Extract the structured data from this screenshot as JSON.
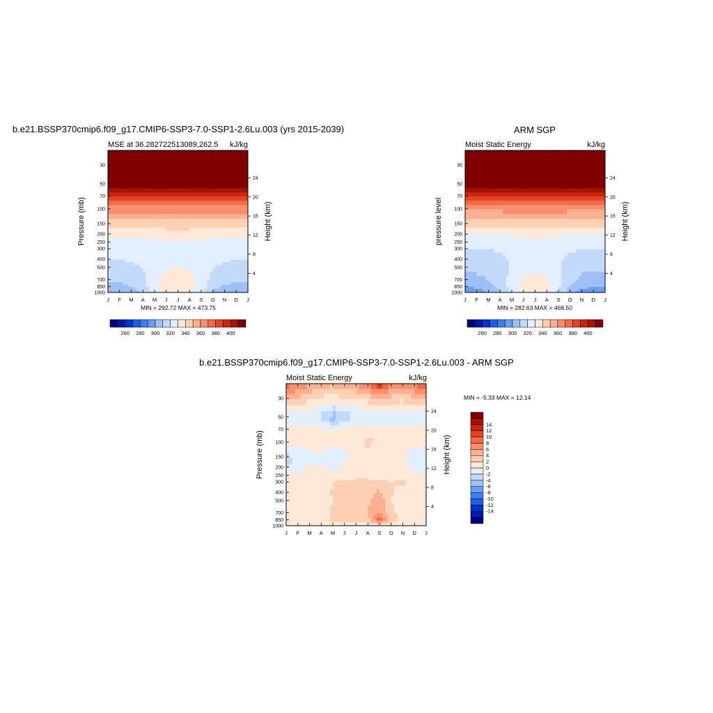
{
  "colorbar_colors": [
    "#00007f",
    "#001aa6",
    "#0033cc",
    "#1f5ee6",
    "#3d7ff2",
    "#6b9ef2",
    "#9ebff7",
    "#c4dafb",
    "#e3eefd",
    "#fee9d8",
    "#fdd0b5",
    "#fbb092",
    "#f7906e",
    "#f26a48",
    "#e24524",
    "#c8250f",
    "#a61303",
    "#7e0000"
  ],
  "charts": {
    "left": {
      "title": "b.e21.BSSP370cmip6.f09_g17.CMIP6-SSP3-7.0-SSP1-2.6Lu.003 (yrs 2015-2039)",
      "subtitle_left": "MSE at 36.282722513089,262.5",
      "subtitle_right": "kJ/kg",
      "ylabel": "Pressure (mb)",
      "y2label": "Height (km)",
      "minmax": "MIN = 292.72  MAX = 473.75"
    },
    "right": {
      "title": "ARM SGP",
      "subtitle_left": "Moist Static Energy",
      "subtitle_right": "kJ/kg",
      "ylabel": "pressure level",
      "y2label": "Height (km)",
      "minmax": "MIN = 282.63  MAX = 468.50"
    },
    "diff": {
      "title": "b.e21.BSSP370cmip6.f09_g17.CMIP6-SSP3-7.0-SSP1-2.6Lu.003 - ARM SGP",
      "subtitle_left": "Moist Static Energy",
      "subtitle_right": "kJ/kg",
      "ylabel": "Pressure (mb)",
      "y2label": "Height (km)",
      "minmax": "MIN =  -5.33  MAX =  12.14"
    }
  },
  "chart_data": [
    {
      "type": "heatmap",
      "id": "left",
      "x_ticks": [
        "J",
        "F",
        "M",
        "A",
        "M",
        "J",
        "J",
        "A",
        "S",
        "O",
        "N",
        "D",
        "J"
      ],
      "y_pressure_ticks": [
        30,
        50,
        70,
        100,
        150,
        200,
        250,
        300,
        400,
        500,
        700,
        850,
        1000
      ],
      "y_height_ticks": [
        24,
        20,
        16,
        12,
        8,
        4
      ],
      "ylim_pressure": [
        1000,
        20
      ],
      "colorbar_ticks": [
        260,
        280,
        300,
        320,
        340,
        360,
        380,
        400
      ],
      "colorbar_levels": [
        250,
        260,
        270,
        280,
        290,
        300,
        310,
        320,
        330,
        340,
        350,
        360,
        370,
        380,
        390,
        400,
        410
      ],
      "levels_mb": [
        1000,
        850,
        700,
        500,
        400,
        300,
        250,
        200,
        150,
        100,
        70,
        50,
        30,
        20
      ],
      "values": [
        [
          300,
          300,
          302,
          310,
          324,
          330,
          332,
          330,
          322,
          308,
          302,
          300,
          300
        ],
        [
          307,
          307,
          310,
          316,
          328,
          336,
          338,
          336,
          326,
          313,
          308,
          307,
          307
        ],
        [
          312,
          312,
          314,
          318,
          327,
          333,
          334,
          333,
          326,
          317,
          313,
          312,
          312
        ],
        [
          317,
          317,
          318,
          320,
          325,
          329,
          330,
          329,
          325,
          320,
          318,
          317,
          317
        ],
        [
          320,
          320,
          321,
          322,
          325,
          328,
          328,
          328,
          325,
          322,
          321,
          320,
          320
        ],
        [
          323,
          323,
          323,
          324,
          326,
          328,
          328,
          328,
          326,
          324,
          323,
          323,
          323
        ],
        [
          326,
          326,
          326,
          327,
          328,
          329,
          329,
          329,
          328,
          327,
          326,
          326,
          326
        ],
        [
          332,
          332,
          332,
          332,
          333,
          334,
          334,
          334,
          333,
          332,
          332,
          332,
          332
        ],
        [
          345,
          345,
          345,
          345,
          346,
          346,
          346,
          346,
          345,
          345,
          345,
          345,
          345
        ],
        [
          366,
          366,
          366,
          366,
          366,
          366,
          366,
          366,
          366,
          366,
          366,
          366,
          366
        ],
        [
          388,
          388,
          388,
          388,
          389,
          389,
          389,
          389,
          388,
          388,
          388,
          388,
          388
        ],
        [
          420,
          420,
          420,
          420,
          420,
          420,
          420,
          420,
          420,
          420,
          420,
          420,
          420
        ],
        [
          460,
          460,
          460,
          460,
          460,
          460,
          460,
          460,
          460,
          460,
          460,
          460,
          460
        ],
        [
          474,
          474,
          474,
          474,
          474,
          474,
          474,
          474,
          474,
          474,
          474,
          474,
          474
        ]
      ]
    },
    {
      "type": "heatmap",
      "id": "right",
      "x_ticks": [
        "J",
        "F",
        "M",
        "A",
        "M",
        "J",
        "J",
        "A",
        "S",
        "O",
        "N",
        "D",
        "J"
      ],
      "y_pressure_ticks": [
        30,
        50,
        70,
        100,
        150,
        200,
        250,
        300,
        400,
        500,
        700,
        850,
        1000
      ],
      "y_height_ticks": [
        24,
        20,
        16,
        12,
        8,
        4
      ],
      "ylim_pressure": [
        1000,
        20
      ],
      "colorbar_ticks": [
        260,
        280,
        300,
        320,
        340,
        360,
        380,
        400
      ],
      "colorbar_levels": [
        250,
        260,
        270,
        280,
        290,
        300,
        310,
        320,
        330,
        340,
        350,
        360,
        370,
        380,
        390,
        400,
        410
      ],
      "levels_mb": [
        1000,
        850,
        700,
        500,
        400,
        300,
        250,
        200,
        150,
        100,
        70,
        50,
        30,
        20
      ],
      "values": [
        [
          292,
          294,
          300,
          308,
          320,
          328,
          332,
          328,
          318,
          304,
          296,
          292,
          292
        ],
        [
          300,
          302,
          306,
          313,
          325,
          332,
          336,
          332,
          322,
          309,
          302,
          300,
          300
        ],
        [
          307,
          308,
          310,
          315,
          324,
          331,
          333,
          331,
          323,
          313,
          308,
          307,
          307
        ],
        [
          312,
          312,
          313,
          316,
          321,
          326,
          328,
          326,
          321,
          315,
          312,
          312,
          312
        ],
        [
          316,
          316,
          316,
          318,
          321,
          324,
          325,
          324,
          321,
          318,
          316,
          316,
          316
        ],
        [
          320,
          320,
          320,
          321,
          323,
          325,
          326,
          325,
          323,
          321,
          320,
          320,
          320
        ],
        [
          323,
          323,
          323,
          324,
          325,
          327,
          328,
          327,
          325,
          324,
          323,
          323,
          323
        ],
        [
          330,
          330,
          330,
          330,
          331,
          332,
          333,
          332,
          331,
          330,
          330,
          330,
          330
        ],
        [
          343,
          343,
          343,
          343,
          344,
          344,
          345,
          344,
          344,
          343,
          343,
          343,
          343
        ],
        [
          363,
          363,
          363,
          363,
          364,
          364,
          364,
          364,
          364,
          363,
          363,
          363,
          363
        ],
        [
          386,
          386,
          386,
          386,
          387,
          387,
          387,
          387,
          387,
          386,
          386,
          386,
          386
        ],
        [
          418,
          418,
          418,
          418,
          418,
          418,
          418,
          418,
          418,
          418,
          418,
          418,
          418
        ],
        [
          455,
          455,
          455,
          455,
          455,
          455,
          455,
          455,
          455,
          455,
          455,
          455,
          455
        ],
        [
          468,
          468,
          468,
          468,
          468,
          468,
          468,
          468,
          468,
          468,
          468,
          468,
          468
        ]
      ]
    },
    {
      "type": "heatmap",
      "id": "diff",
      "x_ticks": [
        "J",
        "F",
        "M",
        "A",
        "M",
        "J",
        "J",
        "A",
        "S",
        "O",
        "N",
        "D",
        "J"
      ],
      "y_pressure_ticks": [
        30,
        50,
        70,
        100,
        150,
        200,
        250,
        300,
        400,
        500,
        700,
        850,
        1000
      ],
      "y_height_ticks": [
        24,
        20,
        16,
        12,
        8,
        4
      ],
      "ylim_pressure": [
        1000,
        20
      ],
      "colorbar_ticks": [
        -14,
        -12,
        -10,
        -8,
        -6,
        -4,
        -2,
        0,
        2,
        4,
        6,
        8,
        10,
        12,
        14
      ],
      "colorbar_levels": [
        -15,
        -14,
        -13,
        -12,
        -11,
        -10,
        -9,
        -8,
        -7,
        -6,
        -5,
        -4,
        -3,
        -2,
        -1,
        0,
        1,
        2,
        3,
        4,
        5,
        6,
        7,
        8,
        9,
        10,
        11,
        12,
        13,
        14,
        15
      ],
      "levels_mb": [
        1000,
        850,
        700,
        500,
        400,
        300,
        250,
        200,
        150,
        100,
        70,
        50,
        30,
        20
      ],
      "values": [
        [
          0.5,
          0.5,
          0.5,
          0.5,
          0.5,
          0.5,
          0.5,
          0.5,
          0.5,
          0.5,
          0.5,
          0.5,
          0.5
        ],
        [
          0.5,
          0.8,
          0.6,
          1.0,
          2.5,
          3.0,
          3.2,
          3.0,
          9.5,
          3.0,
          1.2,
          0.5,
          0.5
        ],
        [
          0.3,
          0.5,
          0.4,
          1.0,
          2.5,
          3.5,
          3.0,
          4.0,
          6.0,
          2.5,
          1.0,
          0.4,
          0.3
        ],
        [
          0.2,
          0.3,
          0.3,
          0.8,
          2.0,
          3.0,
          2.5,
          3.5,
          5.5,
          2.0,
          0.8,
          0.3,
          0.2
        ],
        [
          0.3,
          0.2,
          0.4,
          1.0,
          2.2,
          3.0,
          3.2,
          3.0,
          4.5,
          2.2,
          1.0,
          0.4,
          0.3
        ],
        [
          0.5,
          0.4,
          0.5,
          1.0,
          2.0,
          2.5,
          2.5,
          2.5,
          2.5,
          2.0,
          2.5,
          0.8,
          0.5
        ],
        [
          0.5,
          0.5,
          0.5,
          0.8,
          1.0,
          1.2,
          1.5,
          1.5,
          1.0,
          1.2,
          1.5,
          0.5,
          0.5
        ],
        [
          -2.0,
          -1.0,
          0.5,
          0.5,
          -1.0,
          0.5,
          0.5,
          0.5,
          0.5,
          0.5,
          0.8,
          -0.5,
          -1.0
        ],
        [
          -3.0,
          -1.5,
          -1.0,
          -1.5,
          -2.0,
          -0.5,
          0.5,
          0.5,
          0.3,
          0.4,
          0.3,
          -1.0,
          -1.5
        ],
        [
          0.5,
          0.5,
          1.0,
          2.0,
          0.5,
          0.4,
          1.5,
          2.5,
          2.0,
          0.5,
          0.4,
          0.5,
          0.5
        ],
        [
          0.3,
          0.4,
          0.6,
          0.5,
          0.5,
          0.6,
          0.5,
          0.5,
          0.4,
          0.3,
          0.3,
          0.4,
          0.3
        ],
        [
          -1.0,
          -1.0,
          -1.5,
          -2.5,
          -5.3,
          -3.5,
          -1.8,
          -1.0,
          -1.0,
          -1.0,
          -1.0,
          -1.0,
          -1.0
        ],
        [
          5.0,
          3.5,
          2.5,
          1.5,
          1.0,
          1.5,
          1.5,
          2.5,
          4.5,
          3.0,
          2.5,
          3.5,
          4.5
        ],
        [
          9.0,
          8.0,
          6.0,
          5.0,
          4.5,
          6.0,
          6.5,
          8.5,
          12.0,
          8.0,
          7.0,
          8.5,
          9.5
        ]
      ]
    }
  ]
}
